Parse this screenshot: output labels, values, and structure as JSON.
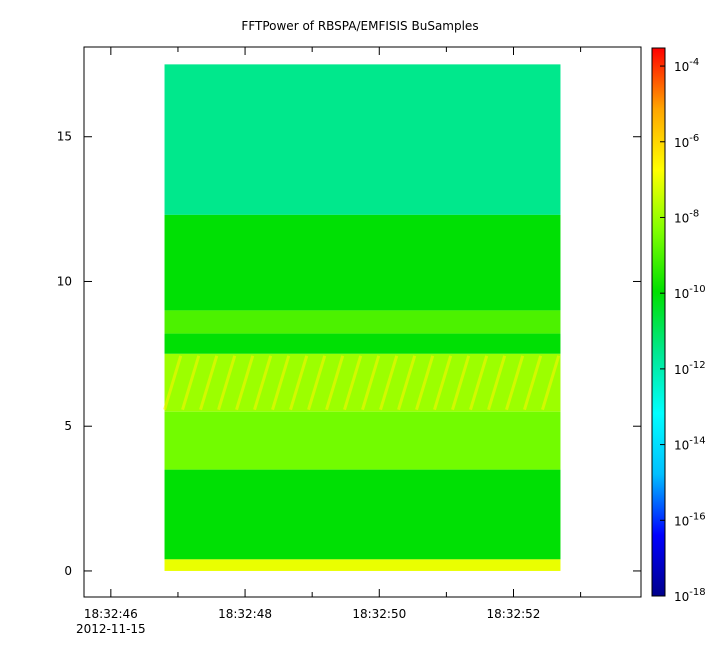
{
  "chart_data": {
    "type": "heatmap",
    "title": "FFTPower of RBSPA/EMFISIS  BuSamples",
    "xlabel": "",
    "ylabel": "",
    "x_ticks": [
      {
        "value": "18:32:46",
        "label": "18:32:46",
        "sublabel": "2012-11-15"
      },
      {
        "value": "18:32:48",
        "label": "18:32:48"
      },
      {
        "value": "18:32:50",
        "label": "18:32:50"
      },
      {
        "value": "18:32:52",
        "label": "18:32:52"
      }
    ],
    "x_minor_ticks": [
      "18:32:47",
      "18:32:49",
      "18:32:51",
      "18:32:53"
    ],
    "xlim": [
      "18:32:45.6",
      "18:32:53.9"
    ],
    "data_time_range": [
      "18:32:46.8",
      "18:32:52.7"
    ],
    "y_ticks": [
      0,
      5,
      10,
      15
    ],
    "ylim": [
      -0.9,
      18.1
    ],
    "data_y_range": [
      0,
      17.5
    ],
    "colorbar": {
      "scale": "log",
      "range": [
        1e-18,
        0.0003
      ],
      "tick_labels": [
        {
          "base": "10",
          "exp": "-4",
          "value": 0.0001
        },
        {
          "base": "10",
          "exp": "-6",
          "value": 1e-06
        },
        {
          "base": "10",
          "exp": "-8",
          "value": 1e-08
        },
        {
          "base": "10",
          "exp": "-10",
          "value": 1e-10
        },
        {
          "base": "10",
          "exp": "-12",
          "value": 1e-12
        },
        {
          "base": "10",
          "exp": "-14",
          "value": 1e-14
        },
        {
          "base": "10",
          "exp": "-16",
          "value": 1e-16
        },
        {
          "base": "10",
          "exp": "-18",
          "value": 1e-18
        }
      ]
    },
    "frequency_bands": [
      {
        "y_range": [
          12.3,
          17.5
        ],
        "power": 3e-12
      },
      {
        "y_range": [
          9.0,
          12.3
        ],
        "power": 1e-10
      },
      {
        "y_range": [
          8.2,
          9.0
        ],
        "power": 1e-09
      },
      {
        "y_range": [
          7.5,
          8.2
        ],
        "power": 1e-10
      },
      {
        "y_range": [
          5.5,
          7.5
        ],
        "power": 1e-08,
        "note_rising_tones": true
      },
      {
        "y_range": [
          3.5,
          5.5
        ],
        "power": 3e-09
      },
      {
        "y_range": [
          0.4,
          3.5
        ],
        "power": 1e-10
      },
      {
        "y_range": [
          0.0,
          0.4
        ],
        "power": 1e-07
      }
    ],
    "colormap": [
      "#00008b",
      "#0000ff",
      "#00bfff",
      "#00ffff",
      "#00e890",
      "#00e000",
      "#80ff00",
      "#ffff00",
      "#ffa500",
      "#ff0000"
    ],
    "grid": false,
    "legend": "none"
  }
}
